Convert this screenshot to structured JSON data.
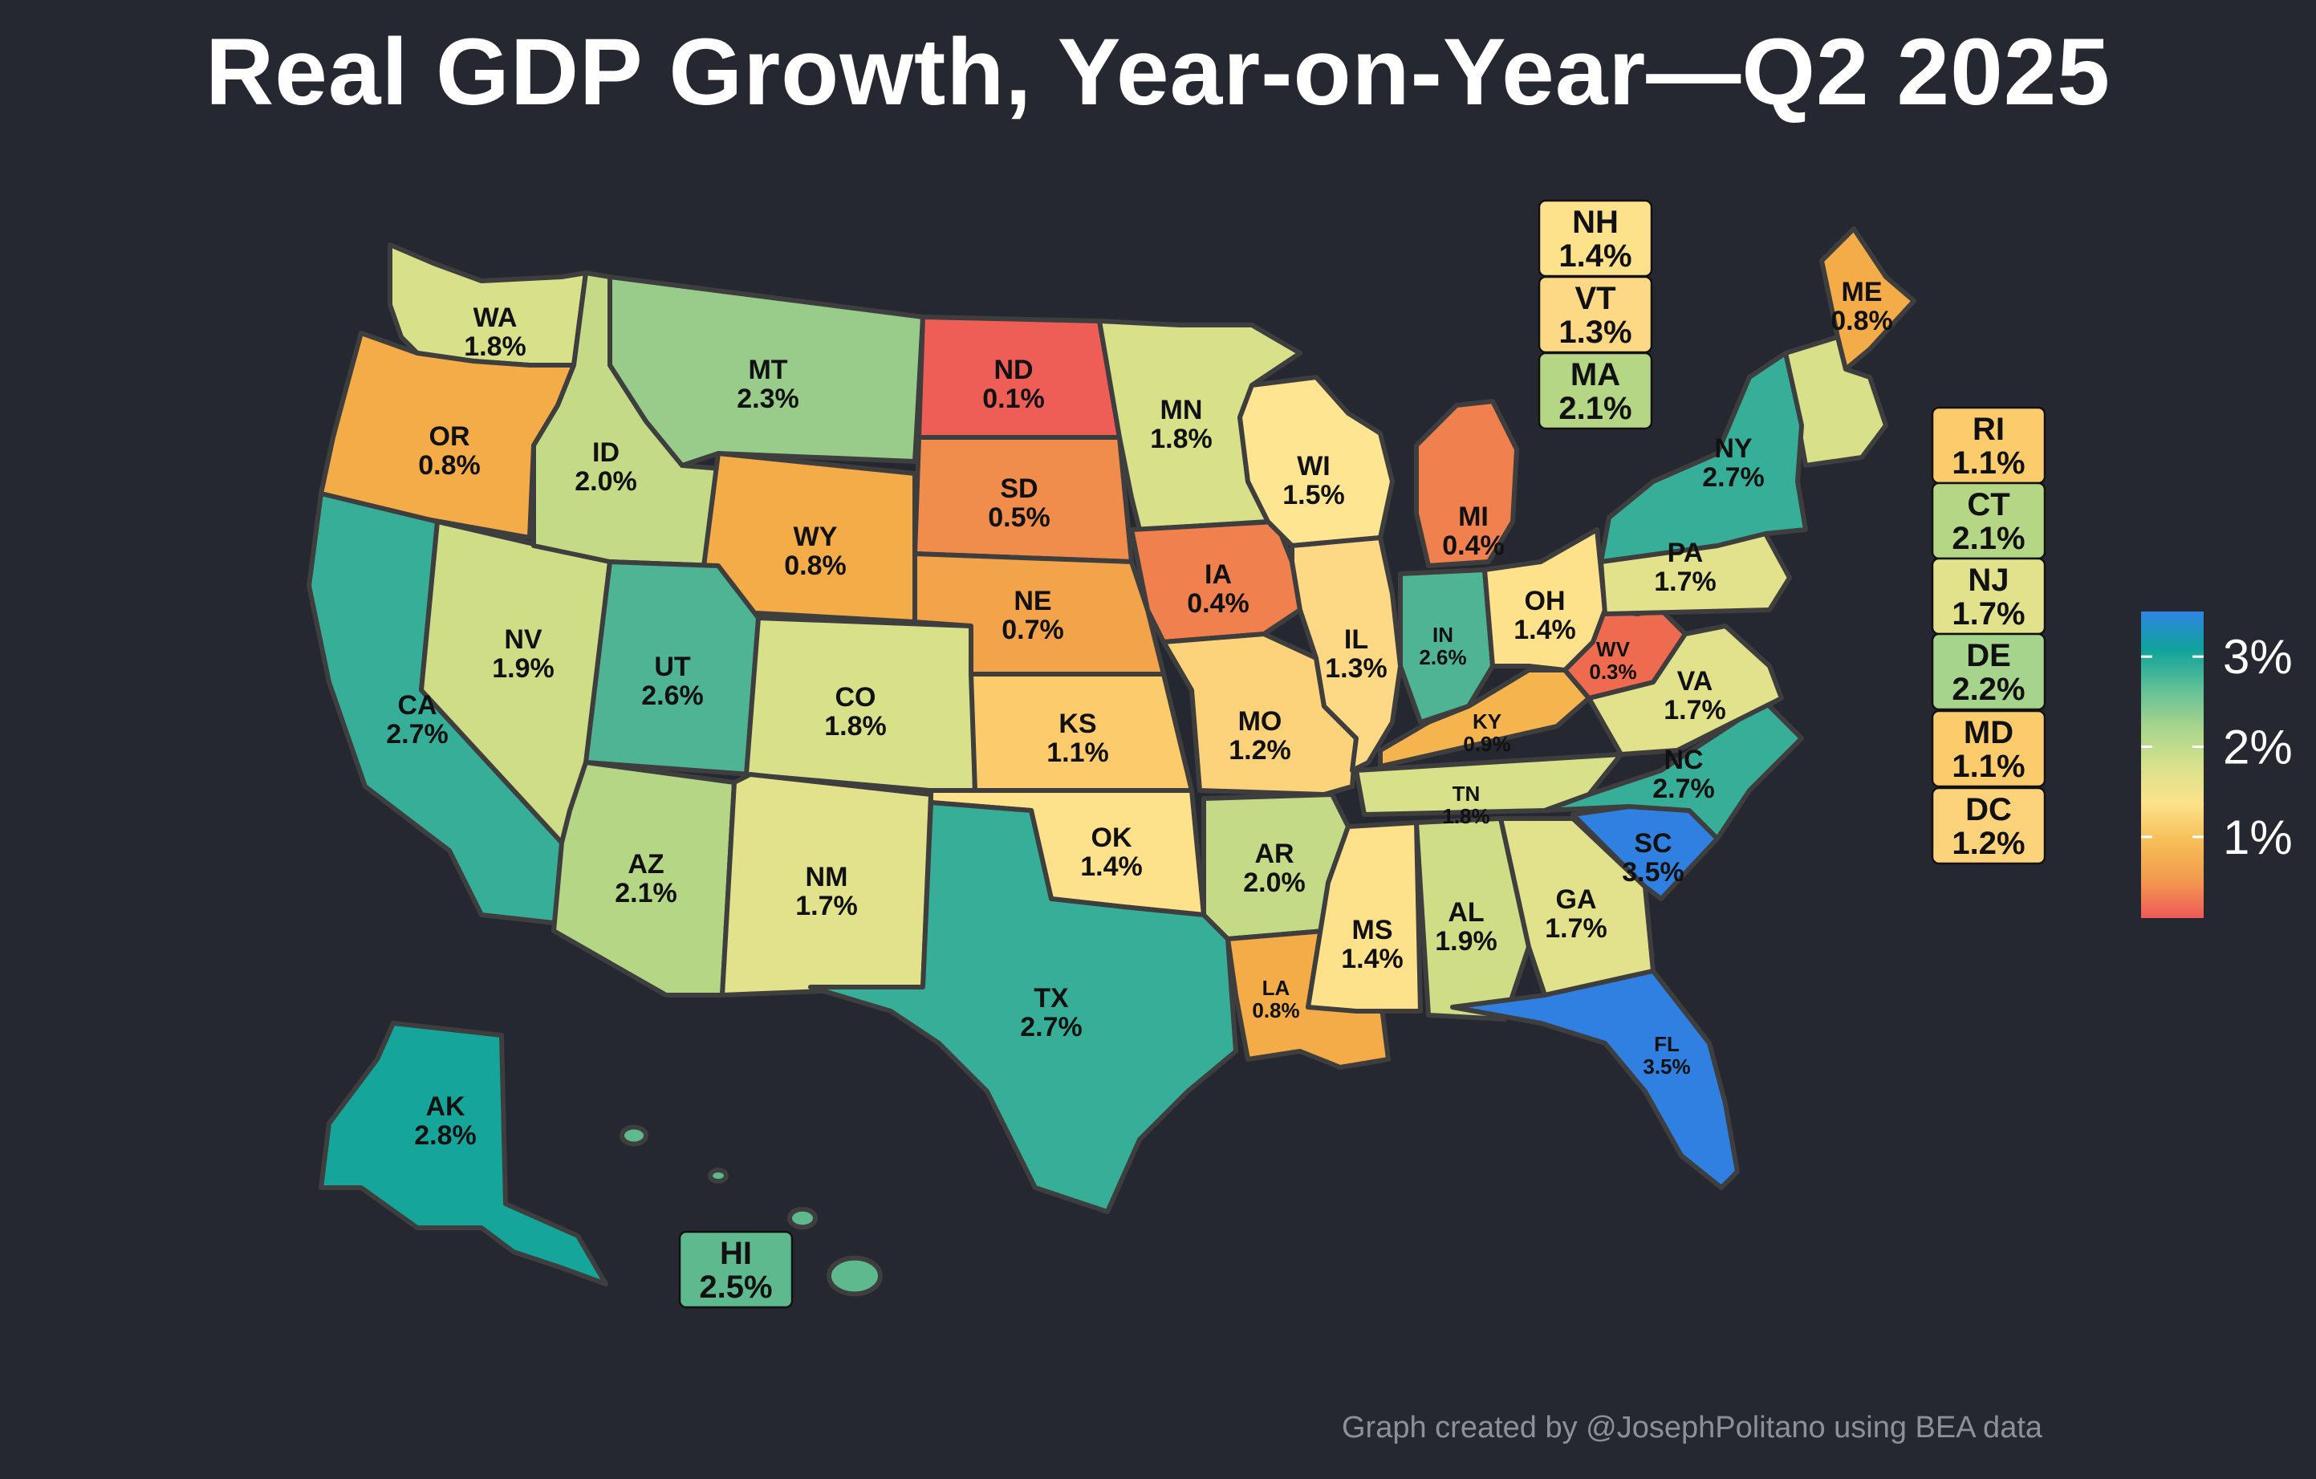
{
  "title": "Real GDP Growth, Year-on-Year—Q2 2025",
  "credit": "Graph created by @JosephPolitano using BEA data",
  "legend": {
    "ticks": [
      "3%",
      "2%",
      "1%"
    ],
    "tick_values": [
      3,
      2,
      1
    ],
    "range": [
      0.1,
      3.5
    ],
    "colors": [
      "#ef5a5a",
      "#f29a4e",
      "#f6be57",
      "#fde28b",
      "#d7e18d",
      "#a6d48d",
      "#5fbf98",
      "#10a39a",
      "#2e85e3"
    ]
  },
  "states": [
    {
      "abbr": "WA",
      "value": "1.8%",
      "color": "#d8e08a"
    },
    {
      "abbr": "OR",
      "value": "0.8%",
      "color": "#f3ac47"
    },
    {
      "abbr": "CA",
      "value": "2.7%",
      "color": "#36ae98"
    },
    {
      "abbr": "NV",
      "value": "1.9%",
      "color": "#cfdd87"
    },
    {
      "abbr": "ID",
      "value": "2.0%",
      "color": "#c4da86"
    },
    {
      "abbr": "MT",
      "value": "2.3%",
      "color": "#99cc8a"
    },
    {
      "abbr": "WY",
      "value": "0.8%",
      "color": "#f3ac47"
    },
    {
      "abbr": "UT",
      "value": "2.6%",
      "color": "#4fb493"
    },
    {
      "abbr": "AZ",
      "value": "2.1%",
      "color": "#b5d685"
    },
    {
      "abbr": "CO",
      "value": "1.8%",
      "color": "#d8e08a"
    },
    {
      "abbr": "NM",
      "value": "1.7%",
      "color": "#e2e28c"
    },
    {
      "abbr": "ND",
      "value": "0.1%",
      "color": "#ee5e57"
    },
    {
      "abbr": "SD",
      "value": "0.5%",
      "color": "#f08c4c"
    },
    {
      "abbr": "NE",
      "value": "0.7%",
      "color": "#f3a34a"
    },
    {
      "abbr": "KS",
      "value": "1.1%",
      "color": "#fbcb6c"
    },
    {
      "abbr": "OK",
      "value": "1.4%",
      "color": "#fde28b"
    },
    {
      "abbr": "TX",
      "value": "2.7%",
      "color": "#36ae98"
    },
    {
      "abbr": "MN",
      "value": "1.8%",
      "color": "#d8e08a"
    },
    {
      "abbr": "IA",
      "value": "0.4%",
      "color": "#f0804d"
    },
    {
      "abbr": "MO",
      "value": "1.2%",
      "color": "#fcd27a"
    },
    {
      "abbr": "AR",
      "value": "2.0%",
      "color": "#c4da86"
    },
    {
      "abbr": "LA",
      "value": "0.8%",
      "color": "#f3ac47"
    },
    {
      "abbr": "WI",
      "value": "1.5%",
      "color": "#fde591"
    },
    {
      "abbr": "IL",
      "value": "1.3%",
      "color": "#fdd985"
    },
    {
      "abbr": "MI",
      "value": "0.4%",
      "color": "#f0804d"
    },
    {
      "abbr": "IN",
      "value": "2.6%",
      "color": "#4fb493"
    },
    {
      "abbr": "OH",
      "value": "1.4%",
      "color": "#fde28b"
    },
    {
      "abbr": "KY",
      "value": "0.9%",
      "color": "#f5b44e"
    },
    {
      "abbr": "TN",
      "value": "1.8%",
      "color": "#d8e08a"
    },
    {
      "abbr": "MS",
      "value": "1.4%",
      "color": "#fde28b"
    },
    {
      "abbr": "AL",
      "value": "1.9%",
      "color": "#cfdd87"
    },
    {
      "abbr": "GA",
      "value": "1.7%",
      "color": "#e2e28c"
    },
    {
      "abbr": "FL",
      "value": "3.5%",
      "color": "#2f80e0"
    },
    {
      "abbr": "SC",
      "value": "3.5%",
      "color": "#2f80e0"
    },
    {
      "abbr": "NC",
      "value": "2.7%",
      "color": "#36ae98"
    },
    {
      "abbr": "VA",
      "value": "1.7%",
      "color": "#e2e28c"
    },
    {
      "abbr": "WV",
      "value": "0.3%",
      "color": "#ef6b50"
    },
    {
      "abbr": "PA",
      "value": "1.7%",
      "color": "#e2e28c"
    },
    {
      "abbr": "NY",
      "value": "2.7%",
      "color": "#36ae98"
    },
    {
      "abbr": "ME",
      "value": "0.8%",
      "color": "#f3ac47"
    },
    {
      "abbr": "AK",
      "value": "2.8%",
      "color": "#15a59b"
    }
  ],
  "callouts": [
    {
      "abbr": "NH",
      "value": "1.4%",
      "color": "#fde28b"
    },
    {
      "abbr": "VT",
      "value": "1.3%",
      "color": "#fdd985"
    },
    {
      "abbr": "MA",
      "value": "2.1%",
      "color": "#b5d685"
    },
    {
      "abbr": "RI",
      "value": "1.1%",
      "color": "#fbcb6c"
    },
    {
      "abbr": "CT",
      "value": "2.1%",
      "color": "#b5d685"
    },
    {
      "abbr": "NJ",
      "value": "1.7%",
      "color": "#e2e28c"
    },
    {
      "abbr": "DE",
      "value": "2.2%",
      "color": "#a6d48d"
    },
    {
      "abbr": "MD",
      "value": "1.1%",
      "color": "#fbcb6c"
    },
    {
      "abbr": "DC",
      "value": "1.2%",
      "color": "#fcd27a"
    },
    {
      "abbr": "HI",
      "value": "2.5%",
      "color": "#5fb98f"
    }
  ]
}
